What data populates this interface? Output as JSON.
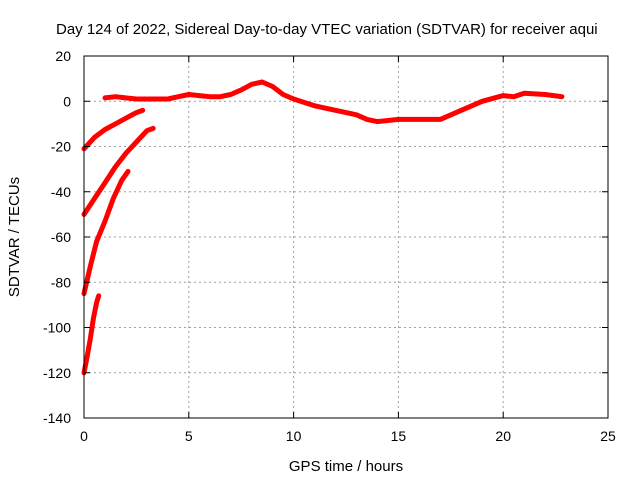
{
  "chart_data": {
    "type": "line",
    "title": "Day 124 of 2022, Sidereal Day-to-day VTEC variation (SDTVAR) for receiver aqui",
    "xlabel": "GPS time / hours",
    "ylabel": "SDTVAR / TECUs",
    "xlim": [
      0,
      25
    ],
    "ylim": [
      -140,
      20
    ],
    "xticks": [
      0,
      5,
      10,
      15,
      20,
      25
    ],
    "yticks": [
      20,
      0,
      -20,
      -40,
      -60,
      -80,
      -100,
      -120,
      -140
    ],
    "grid": true,
    "color": "#ff0000",
    "series": [
      {
        "name": "main",
        "points": [
          [
            1.0,
            1.5
          ],
          [
            1.5,
            2
          ],
          [
            2,
            1.5
          ],
          [
            2.5,
            1
          ],
          [
            3,
            1
          ],
          [
            3.5,
            1
          ],
          [
            4,
            1
          ],
          [
            4.5,
            2
          ],
          [
            5,
            3
          ],
          [
            5.5,
            2.5
          ],
          [
            6,
            2
          ],
          [
            6.5,
            2
          ],
          [
            7,
            3
          ],
          [
            7.5,
            5
          ],
          [
            8,
            7.5
          ],
          [
            8.5,
            8.5
          ],
          [
            9,
            6.5
          ],
          [
            9.5,
            3
          ],
          [
            10,
            1
          ],
          [
            11,
            -2
          ],
          [
            12,
            -4
          ],
          [
            13,
            -6
          ],
          [
            13.5,
            -8
          ],
          [
            14,
            -9
          ],
          [
            15,
            -8
          ],
          [
            16,
            -8
          ],
          [
            17,
            -8
          ],
          [
            18,
            -4
          ],
          [
            19,
            0
          ],
          [
            20,
            2.5
          ],
          [
            20.5,
            2
          ],
          [
            21,
            3.5
          ],
          [
            22,
            3
          ],
          [
            22.8,
            2
          ]
        ]
      },
      {
        "name": "seg1",
        "points": [
          [
            0,
            -21
          ],
          [
            0.5,
            -16
          ],
          [
            1,
            -12.5
          ],
          [
            1.5,
            -10
          ],
          [
            2,
            -7.5
          ],
          [
            2.5,
            -5
          ],
          [
            2.8,
            -4
          ]
        ]
      },
      {
        "name": "seg2",
        "points": [
          [
            0,
            -50
          ],
          [
            0.5,
            -43
          ],
          [
            1,
            -36
          ],
          [
            1.5,
            -29
          ],
          [
            2,
            -23
          ],
          [
            2.5,
            -18
          ],
          [
            3,
            -13
          ],
          [
            3.3,
            -12
          ]
        ]
      },
      {
        "name": "seg3",
        "points": [
          [
            0,
            -85
          ],
          [
            0.3,
            -73
          ],
          [
            0.6,
            -62
          ],
          [
            1.0,
            -53
          ],
          [
            1.4,
            -43
          ],
          [
            1.8,
            -35
          ],
          [
            2.1,
            -31
          ]
        ]
      },
      {
        "name": "seg4",
        "points": [
          [
            0,
            -120
          ],
          [
            0.15,
            -113
          ],
          [
            0.3,
            -105
          ],
          [
            0.45,
            -96
          ],
          [
            0.6,
            -89
          ],
          [
            0.7,
            -86
          ]
        ]
      }
    ]
  }
}
